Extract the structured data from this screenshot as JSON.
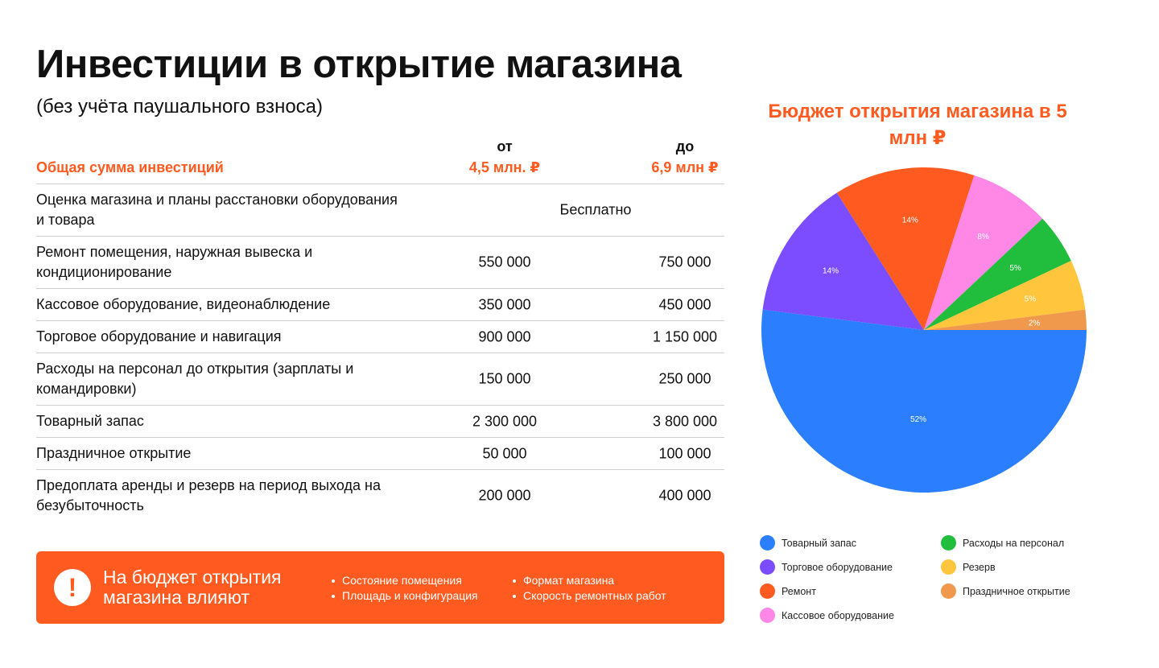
{
  "title": "Инвестиции в открытие магазина",
  "subtitle": "(без учёта паушального взноса)",
  "table": {
    "header": {
      "from": "от",
      "to": "до",
      "total_label": "Общая сумма инвестиций",
      "total_from": "4,5 млн. ₽",
      "total_to": "6,9 млн ₽"
    },
    "rows": [
      {
        "label": "Оценка магазина и планы расстановки оборудования и товара",
        "span": "Бесплатно"
      },
      {
        "label": "Ремонт помещения, наружная вывеска и кондиционирование",
        "from": "550 000",
        "to": "750 000"
      },
      {
        "label": "Кассовое оборудование, видеонаблюдение",
        "from": "350 000",
        "to": "450 000"
      },
      {
        "label": "Торговое оборудование и навигация",
        "from": "900 000",
        "to": "1 150 000"
      },
      {
        "label": "Расходы на персонал до открытия (зарплаты и командировки)",
        "from": "150 000",
        "to": "250 000"
      },
      {
        "label": "Товарный запас",
        "from": "2 300 000",
        "to": "3 800 000"
      },
      {
        "label": "Праздничное открытие",
        "from": "50 000",
        "to": "100 000"
      },
      {
        "label": "Предоплата аренды и резерв на период выхода на безубыточность",
        "from": "200 000",
        "to": "400 000"
      }
    ]
  },
  "banner": {
    "icon": "exclamation-icon",
    "icon_glyph": "!",
    "title": "На бюджет открытия магазина влияют",
    "bullets_col1": [
      "Состояние помещения",
      "Площадь и конфигурация"
    ],
    "bullets_col2": [
      "Формат магазина",
      "Скорость ремонтных работ"
    ]
  },
  "colors": {
    "accent": "#ff5a1f"
  },
  "chart_data": {
    "type": "pie",
    "title": "Бюджет открытия магазина в 5 млн ₽",
    "slices": [
      {
        "name": "Товарный запас",
        "value": 52,
        "label": "52%",
        "color": "#2b7fff"
      },
      {
        "name": "Торговое оборудование",
        "value": 14,
        "label": "14%",
        "color": "#7b4dff"
      },
      {
        "name": "Ремонт",
        "value": 14,
        "label": "14%",
        "color": "#ff5a1f"
      },
      {
        "name": "Кассовое оборудование",
        "value": 8,
        "label": "8%",
        "color": "#ff88e6"
      },
      {
        "name": "Расходы на персонал",
        "value": 5,
        "label": "5%",
        "color": "#21bd3c"
      },
      {
        "name": "Резерв",
        "value": 5,
        "label": "5%",
        "color": "#ffc53d"
      },
      {
        "name": "Праздничное открытие",
        "value": 2,
        "label": "2%",
        "color": "#f0994c"
      }
    ],
    "legend": [
      {
        "name": "Товарный запас",
        "color": "#2b7fff"
      },
      {
        "name": "Торговое оборудование",
        "color": "#7b4dff"
      },
      {
        "name": "Ремонт",
        "color": "#ff5a1f"
      },
      {
        "name": "Кассовое оборудование",
        "color": "#ff88e6"
      },
      {
        "name": "Расходы на персонал",
        "color": "#21bd3c"
      },
      {
        "name": "Резерв",
        "color": "#ffc53d"
      },
      {
        "name": "Праздничное открытие",
        "color": "#f0994c"
      }
    ],
    "legend_placement": "bottom"
  }
}
